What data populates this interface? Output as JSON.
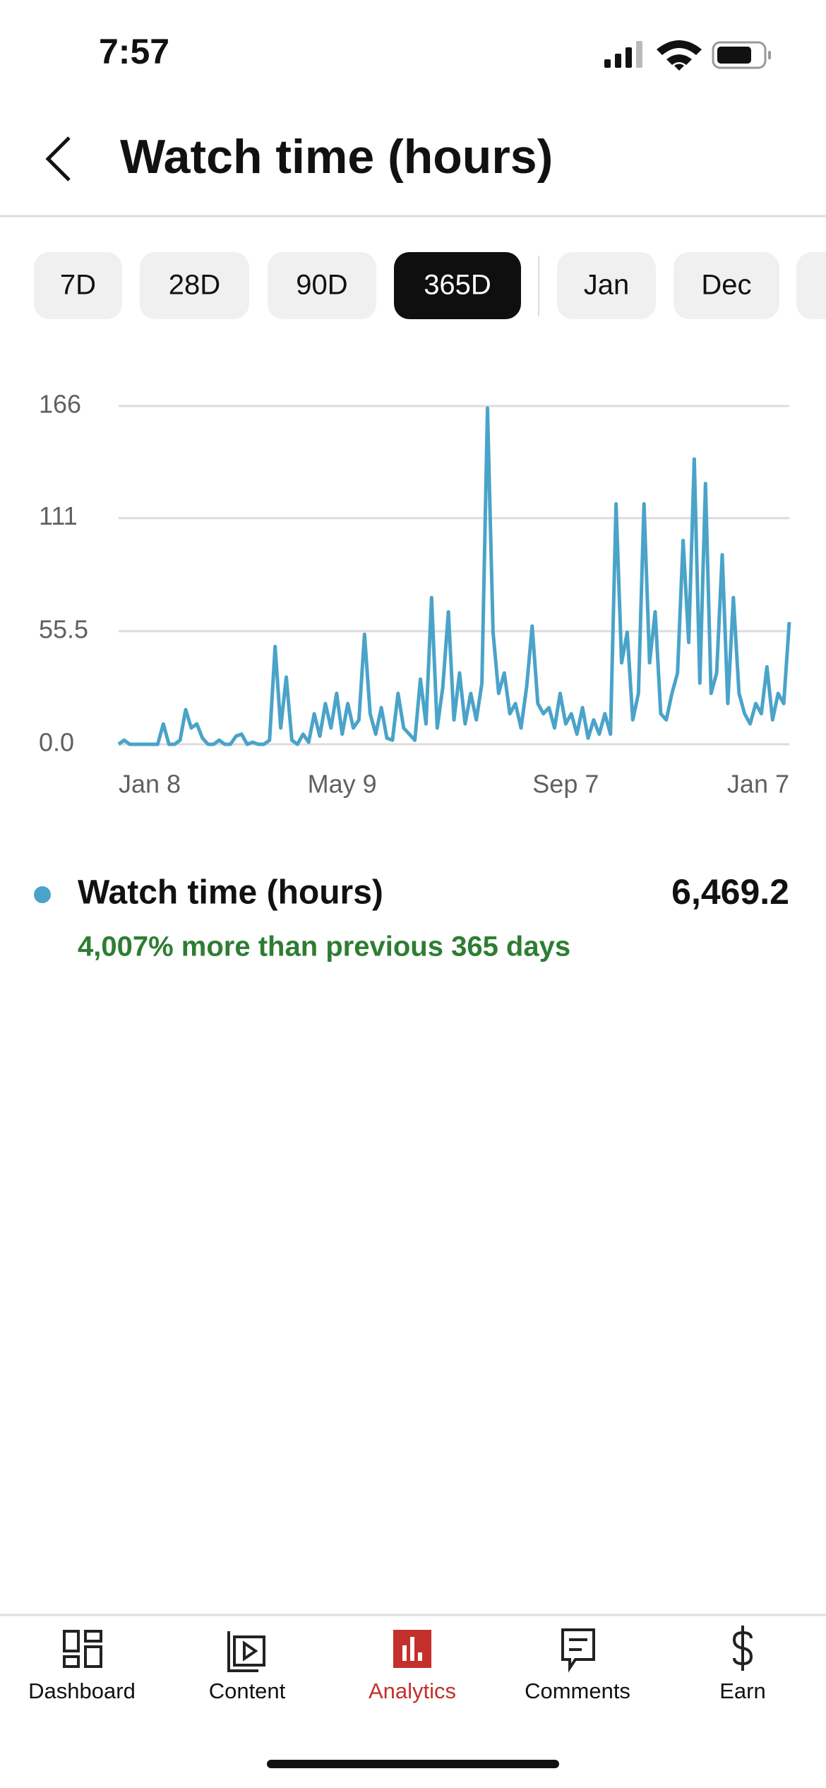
{
  "status_bar": {
    "time": "7:57"
  },
  "header": {
    "title": "Watch time (hours)"
  },
  "chips": {
    "items": [
      "7D",
      "28D",
      "90D",
      "365D",
      "Jan",
      "Dec"
    ],
    "selected_index": 3
  },
  "chart_data": {
    "type": "line",
    "categories": [
      "Jan 8",
      null,
      null,
      null,
      null,
      null,
      null,
      null,
      null,
      null,
      null,
      null,
      null,
      null,
      null,
      null,
      null,
      null,
      null,
      null,
      null,
      null,
      null,
      null,
      null,
      null,
      null,
      null,
      null,
      null,
      null,
      null,
      null,
      null,
      null,
      null,
      null,
      null,
      null,
      null,
      "May 9",
      null,
      null,
      null,
      null,
      null,
      null,
      null,
      null,
      null,
      null,
      null,
      null,
      null,
      null,
      null,
      null,
      null,
      null,
      null,
      null,
      null,
      null,
      null,
      null,
      null,
      null,
      null,
      null,
      null,
      null,
      null,
      null,
      null,
      null,
      null,
      null,
      null,
      null,
      null,
      "Sep 7",
      null,
      null,
      null,
      null,
      null,
      null,
      null,
      null,
      null,
      null,
      null,
      null,
      null,
      null,
      null,
      null,
      null,
      null,
      null,
      null,
      null,
      null,
      null,
      null,
      null,
      null,
      null,
      null,
      null,
      null,
      null,
      null,
      null,
      null,
      null,
      null,
      null,
      null,
      null,
      "Jan 7"
    ],
    "values": [
      0,
      2,
      0,
      0,
      0,
      0,
      0,
      0,
      10,
      0,
      0,
      2,
      17,
      8,
      10,
      3,
      0,
      0,
      2,
      0,
      0,
      4,
      5,
      0,
      1,
      0,
      0,
      2,
      48,
      8,
      33,
      2,
      0,
      5,
      1,
      15,
      4,
      20,
      8,
      25,
      5,
      20,
      8,
      12,
      54,
      15,
      5,
      18,
      3,
      2,
      25,
      8,
      5,
      2,
      32,
      10,
      72,
      8,
      28,
      65,
      12,
      35,
      10,
      25,
      12,
      30,
      165,
      55,
      25,
      35,
      15,
      20,
      8,
      28,
      58,
      20,
      15,
      18,
      8,
      25,
      10,
      15,
      5,
      18,
      3,
      12,
      5,
      15,
      5,
      118,
      40,
      55,
      12,
      25,
      118,
      40,
      65,
      15,
      12,
      25,
      35,
      100,
      50,
      140,
      30,
      128,
      25,
      35,
      93,
      20,
      72,
      25,
      15,
      10,
      20,
      15,
      38,
      12,
      25,
      20,
      60
    ],
    "color": "#4aa3c9",
    "ylim": [
      0,
      166
    ],
    "yticks": [
      {
        "value": 0,
        "label": "0.0"
      },
      55.5,
      111,
      166
    ],
    "grid": true
  },
  "summary": {
    "metric": "Watch time (hours)",
    "total": "6,469.2",
    "change": "4,007% more than previous 365 days"
  },
  "nav": {
    "items": [
      "Dashboard",
      "Content",
      "Analytics",
      "Comments",
      "Earn"
    ],
    "active_index": 2
  }
}
